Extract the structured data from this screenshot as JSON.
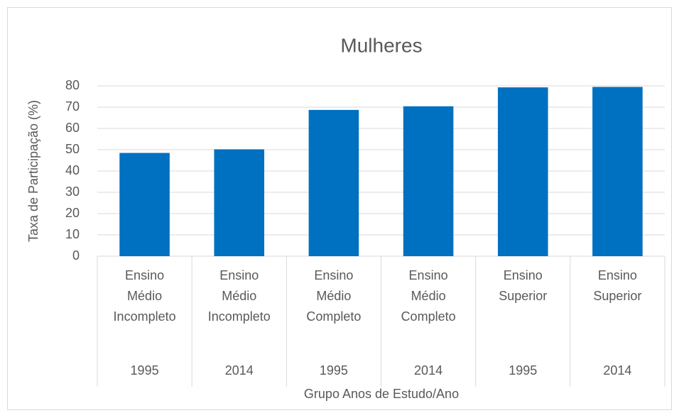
{
  "chart_data": {
    "type": "bar",
    "title": "Mulheres",
    "x_label": "Grupo Anos de Estudo/Ano",
    "y_label": "Taxa de Participação (%)",
    "categories": [
      [
        "Ensino Médio Incompleto",
        "1995"
      ],
      [
        "Ensino Médio Incompleto",
        "2014"
      ],
      [
        "Ensino Médio Completo",
        "1995"
      ],
      [
        "Ensino Médio Completo",
        "2014"
      ],
      [
        "Ensino Superior",
        "1995"
      ],
      [
        "Ensino Superior",
        "2014"
      ]
    ],
    "values": [
      48.5,
      50.2,
      68.7,
      70.4,
      79.3,
      79.5
    ],
    "color": "#0070c0",
    "ylim": [
      0,
      80
    ],
    "yticks": [
      0,
      10,
      20,
      30,
      40,
      50,
      60,
      70,
      80
    ],
    "grid": true
  }
}
